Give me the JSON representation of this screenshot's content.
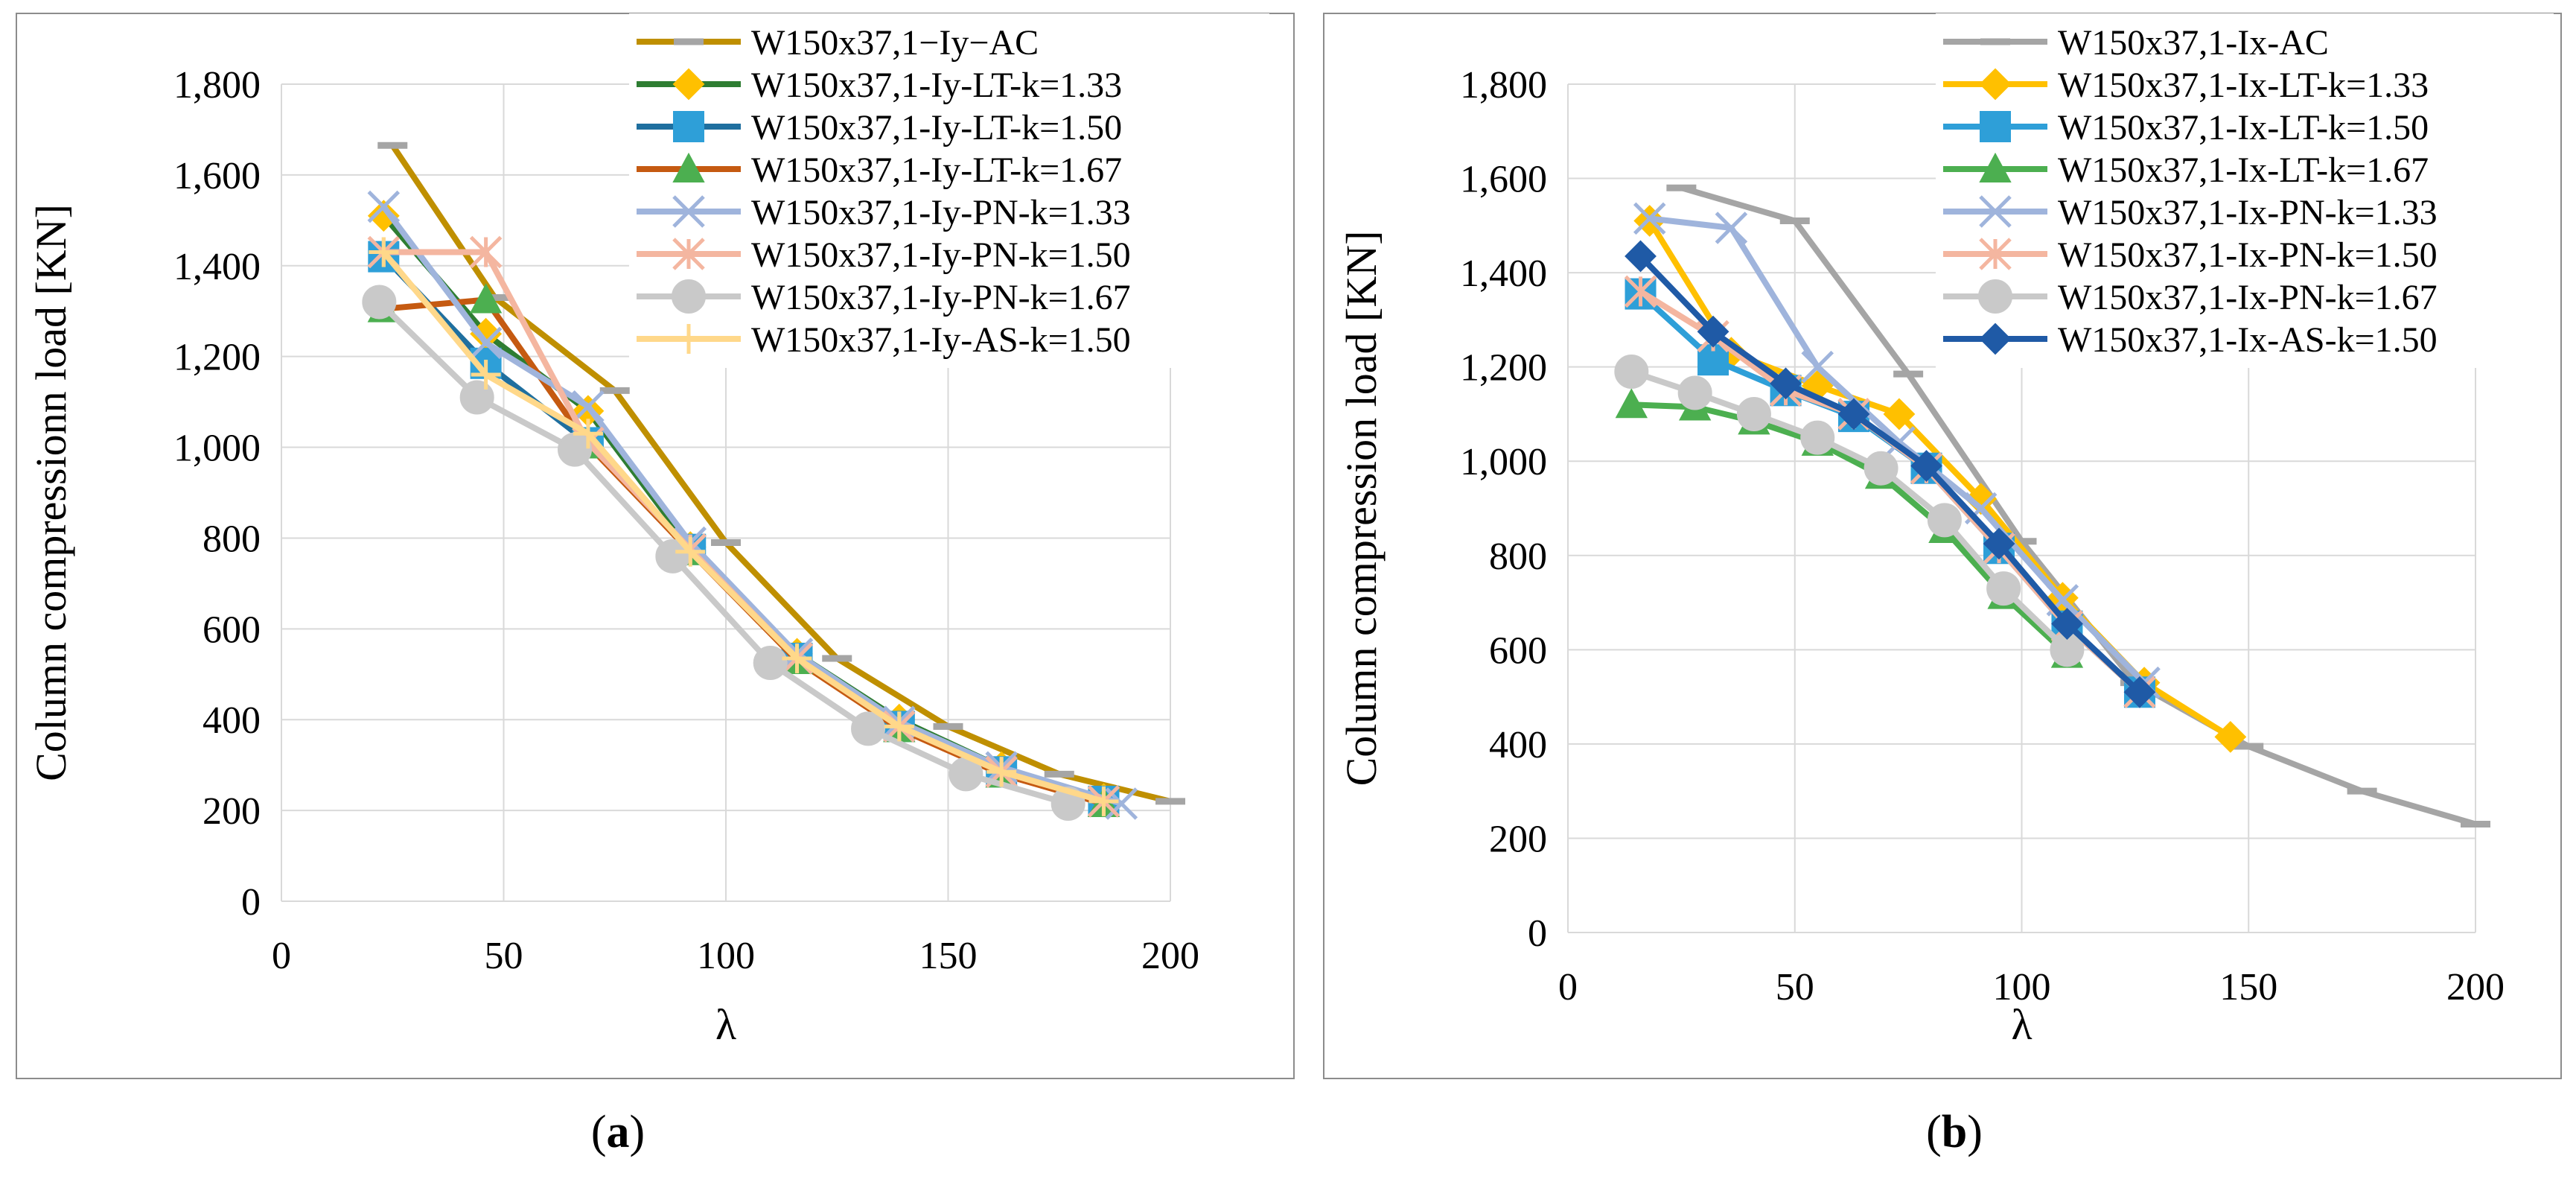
{
  "chart_data": [
    {
      "type": "line",
      "title": "",
      "xlabel": "λ",
      "ylabel": "Column compressionn load [KN]",
      "xlim": [
        0,
        200
      ],
      "ylim": [
        0,
        1800
      ],
      "xticks": [
        0,
        50,
        100,
        150,
        200
      ],
      "yticks": [
        0,
        200,
        400,
        600,
        800,
        1000,
        1200,
        1400,
        1600,
        1800
      ],
      "ytick_labels": [
        "0",
        "200",
        "400",
        "600",
        "800",
        "1,000",
        "1,200",
        "1,400",
        "1,600",
        "1,800"
      ],
      "xtick_labels": [
        "0",
        "50",
        "100",
        "150",
        "200"
      ],
      "grid": true,
      "legend_position": "top-right",
      "panel_label": "a",
      "series": [
        {
          "name": "W150x37,1−Iy−AC",
          "color": "#bf8f00",
          "marker": "dash",
          "marker_color": "#a5a5a5",
          "x": [
            25,
            48,
            75,
            100,
            125,
            150,
            175,
            200
          ],
          "y": [
            1665,
            1330,
            1125,
            790,
            535,
            385,
            280,
            220
          ]
        },
        {
          "name": "W150x37,1-Iy-LT-k=1.33",
          "color": "#2e7d32",
          "marker": "diamond",
          "marker_color": "#ffc000",
          "x": [
            23,
            46,
            69,
            92,
            116,
            139,
            162,
            185
          ],
          "y": [
            1510,
            1250,
            1080,
            780,
            545,
            400,
            295,
            225
          ]
        },
        {
          "name": "W150x37,1-Iy-LT-k=1.50",
          "color": "#1f6f9f",
          "marker": "square",
          "marker_color": "#2e9fd8",
          "x": [
            23,
            46,
            69,
            92,
            116,
            139,
            162,
            185
          ],
          "y": [
            1420,
            1185,
            1010,
            775,
            535,
            385,
            285,
            220
          ]
        },
        {
          "name": "W150x37,1-Iy-LT-k=1.67",
          "color": "#c55a11",
          "marker": "triangle",
          "marker_color": "#4caf50",
          "x": [
            23,
            46,
            69,
            92,
            116,
            139,
            162,
            185
          ],
          "y": [
            1305,
            1325,
            1005,
            770,
            530,
            380,
            280,
            215
          ]
        },
        {
          "name": "W150x37,1-Iy-PN-k=1.33",
          "color": "#9fb4dc",
          "marker": "x",
          "marker_color": "#9fb4dc",
          "x": [
            23,
            46,
            69,
            92,
            116,
            139,
            162,
            189
          ],
          "y": [
            1530,
            1230,
            1090,
            790,
            545,
            395,
            295,
            215
          ]
        },
        {
          "name": "W150x37,1-Iy-PN-k=1.50",
          "color": "#f4b6a0",
          "marker": "asterisk",
          "marker_color": "#f4b6a0",
          "x": [
            23,
            46,
            69,
            92,
            116,
            139,
            162,
            185
          ],
          "y": [
            1430,
            1430,
            1010,
            775,
            535,
            385,
            285,
            220
          ]
        },
        {
          "name": "W150x37,1-Iy-PN-k=1.67",
          "color": "#c9c9c9",
          "marker": "circle",
          "marker_color": "#c9c9c9",
          "x": [
            22,
            44,
            66,
            88,
            110,
            132,
            154,
            177
          ],
          "y": [
            1320,
            1110,
            995,
            760,
            525,
            380,
            280,
            215
          ]
        },
        {
          "name": "W150x37,1-Iy-AS-k=1.50",
          "color": "#ffd88a",
          "marker": "plus",
          "marker_color": "#ffd88a",
          "x": [
            23,
            46,
            69,
            92,
            116,
            139,
            162,
            185
          ],
          "y": [
            1430,
            1160,
            1030,
            770,
            535,
            385,
            285,
            220
          ]
        }
      ]
    },
    {
      "type": "line",
      "title": "",
      "xlabel": "λ",
      "ylabel": "Column compression load [KN]",
      "xlim": [
        0,
        200
      ],
      "ylim": [
        0,
        1800
      ],
      "xticks": [
        0,
        50,
        100,
        150,
        200
      ],
      "yticks": [
        0,
        200,
        400,
        600,
        800,
        1000,
        1200,
        1400,
        1600,
        1800
      ],
      "ytick_labels": [
        "0",
        "200",
        "400",
        "600",
        "800",
        "1,000",
        "1,200",
        "1,400",
        "1,600",
        "1,800"
      ],
      "xtick_labels": [
        "0",
        "50",
        "100",
        "150",
        "200"
      ],
      "grid": true,
      "legend_position": "top-right",
      "panel_label": "b",
      "series": [
        {
          "name": "W150x37,1-Ix-AC",
          "color": "#a5a5a5",
          "marker": "dash",
          "marker_color": "#a5a5a5",
          "x": [
            25,
            50,
            75,
            100,
            125,
            150,
            175,
            200
          ],
          "y": [
            1580,
            1510,
            1185,
            830,
            530,
            395,
            300,
            230
          ]
        },
        {
          "name": "W150x37,1-Ix-LT-k=1.33",
          "color": "#ffc000",
          "marker": "diamond",
          "marker_color": "#ffc000",
          "x": [
            18,
            36,
            55,
            73,
            91,
            109,
            127,
            146
          ],
          "y": [
            1510,
            1230,
            1160,
            1100,
            920,
            710,
            530,
            415
          ]
        },
        {
          "name": "W150x37,1-Ix-LT-k=1.50",
          "color": "#2e9fd8",
          "marker": "square",
          "marker_color": "#2e9fd8",
          "x": [
            16,
            32,
            48,
            63,
            79,
            95,
            110,
            126
          ],
          "y": [
            1355,
            1215,
            1150,
            1095,
            985,
            815,
            650,
            510
          ]
        },
        {
          "name": "W150x37,1-Ix-LT-k=1.67",
          "color": "#4caf50",
          "marker": "triangle",
          "marker_color": "#4caf50",
          "x": [
            14,
            28,
            41,
            55,
            69,
            83,
            96,
            110
          ],
          "y": [
            1120,
            1115,
            1085,
            1040,
            970,
            855,
            715,
            590
          ]
        },
        {
          "name": "W150x37,1-Ix-PN-k=1.33",
          "color": "#9fb4dc",
          "marker": "x",
          "marker_color": "#9fb4dc",
          "x": [
            18,
            36,
            55,
            73,
            91,
            109,
            127
          ],
          "y": [
            1515,
            1495,
            1200,
            1040,
            900,
            705,
            530
          ]
        },
        {
          "name": "W150x37,1-Ix-PN-k=1.50",
          "color": "#f4b6a0",
          "marker": "asterisk",
          "marker_color": "#f4b6a0",
          "x": [
            16,
            32,
            48,
            63,
            79,
            95,
            110,
            126
          ],
          "y": [
            1360,
            1265,
            1150,
            1100,
            985,
            815,
            650,
            510
          ]
        },
        {
          "name": "W150x37,1-Ix-PN-k=1.67",
          "color": "#c9c9c9",
          "marker": "circle",
          "marker_color": "#c9c9c9",
          "x": [
            14,
            28,
            41,
            55,
            69,
            83,
            96,
            110
          ],
          "y": [
            1190,
            1145,
            1100,
            1050,
            985,
            875,
            730,
            600
          ]
        },
        {
          "name": "W150x37,1-Ix-AS-k=1.50",
          "color": "#1f5aa6",
          "marker": "diamond",
          "marker_color": "#1f5aa6",
          "x": [
            16,
            32,
            48,
            63,
            79,
            95,
            110,
            126
          ],
          "y": [
            1435,
            1275,
            1165,
            1100,
            990,
            825,
            655,
            510
          ]
        }
      ]
    }
  ]
}
